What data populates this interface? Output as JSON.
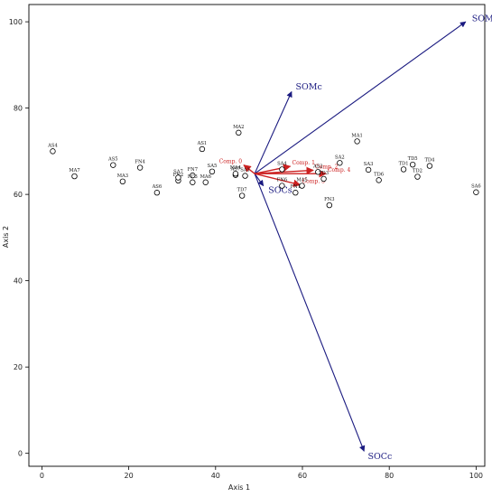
{
  "chart_data": {
    "type": "scatter",
    "xlabel": "Axis 1",
    "ylabel": "Axis 2",
    "xlim": [
      -3,
      102
    ],
    "ylim": [
      -3,
      104
    ],
    "xticks": [
      0,
      20,
      40,
      60,
      80,
      100
    ],
    "yticks": [
      0,
      20,
      40,
      60,
      80,
      100
    ],
    "grid": false,
    "points": [
      {
        "label": "AS4",
        "x": 2.5,
        "y": 70.0
      },
      {
        "label": "MA7",
        "x": 7.5,
        "y": 64.2
      },
      {
        "label": "AS5",
        "x": 16.4,
        "y": 66.8
      },
      {
        "label": "MA3",
        "x": 18.6,
        "y": 63.0
      },
      {
        "label": "FN4",
        "x": 22.6,
        "y": 66.2
      },
      {
        "label": "AS6",
        "x": 26.5,
        "y": 60.4
      },
      {
        "label": "FN2",
        "x": 31.4,
        "y": 63.2
      },
      {
        "label": "SA7",
        "x": 31.4,
        "y": 63.9
      },
      {
        "label": "FN7",
        "x": 34.7,
        "y": 64.4
      },
      {
        "label": "FC3",
        "x": 34.7,
        "y": 62.8
      },
      {
        "label": "AS1",
        "x": 36.9,
        "y": 70.5
      },
      {
        "label": "MA6",
        "x": 37.7,
        "y": 62.8
      },
      {
        "label": "SA5",
        "x": 39.2,
        "y": 65.3
      },
      {
        "label": "MA2",
        "x": 45.3,
        "y": 74.3
      },
      {
        "label": "AS7",
        "x": 44.6,
        "y": 64.5
      },
      {
        "label": "MA4",
        "x": 44.6,
        "y": 64.8
      },
      {
        "label": "SA1",
        "x": 46.8,
        "y": 64.3
      },
      {
        "label": "TD7",
        "x": 46.1,
        "y": 59.7
      },
      {
        "label": "SA4",
        "x": 55.3,
        "y": 65.8
      },
      {
        "label": "FN6",
        "x": 55.3,
        "y": 62.0
      },
      {
        "label": "FN1",
        "x": 58.4,
        "y": 60.4
      },
      {
        "label": "MA5",
        "x": 59.9,
        "y": 62.0
      },
      {
        "label": "AS2",
        "x": 63.6,
        "y": 65.2
      },
      {
        "label": "TD3",
        "x": 64.9,
        "y": 63.6
      },
      {
        "label": "FN3",
        "x": 66.2,
        "y": 57.5
      },
      {
        "label": "SA2",
        "x": 68.6,
        "y": 67.3
      },
      {
        "label": "MA1",
        "x": 72.6,
        "y": 72.3
      },
      {
        "label": "SA3",
        "x": 75.2,
        "y": 65.7
      },
      {
        "label": "TD6",
        "x": 77.6,
        "y": 63.3
      },
      {
        "label": "TD1",
        "x": 83.3,
        "y": 65.8
      },
      {
        "label": "TD5",
        "x": 85.4,
        "y": 66.9
      },
      {
        "label": "TD2",
        "x": 86.5,
        "y": 64.1
      },
      {
        "label": "TD4",
        "x": 89.3,
        "y": 66.6
      },
      {
        "label": "SA6",
        "x": 100.0,
        "y": 60.5
      }
    ],
    "origin": {
      "x": 49.0,
      "y": 64.8
    },
    "vectors": [
      {
        "name": "SOMs",
        "x": 97.6,
        "y": 100.0,
        "color": "#1a1a80",
        "kind": "major"
      },
      {
        "name": "SOMc",
        "x": 57.5,
        "y": 83.8,
        "color": "#1a1a80",
        "kind": "major"
      },
      {
        "name": "SOCs",
        "x": 51.0,
        "y": 62.0,
        "color": "#1a1a80",
        "kind": "major"
      },
      {
        "name": "SOCc",
        "x": 74.2,
        "y": 0.5,
        "color": "#1a1a80",
        "kind": "major"
      },
      {
        "name": "Comp. 0",
        "x": 46.5,
        "y": 66.8,
        "color": "#cc2020",
        "kind": "minor"
      },
      {
        "name": "Comp. 1",
        "x": 57.2,
        "y": 66.5,
        "color": "#cc2020",
        "kind": "minor"
      },
      {
        "name": "Comp. 2",
        "x": 62.5,
        "y": 65.6,
        "color": "#cc2020",
        "kind": "minor"
      },
      {
        "name": "Comp. 3",
        "x": 59.5,
        "y": 62.2,
        "color": "#cc2020",
        "kind": "minor"
      },
      {
        "name": "Comp. 4",
        "x": 65.4,
        "y": 64.8,
        "color": "#cc2020",
        "kind": "minor"
      }
    ]
  }
}
